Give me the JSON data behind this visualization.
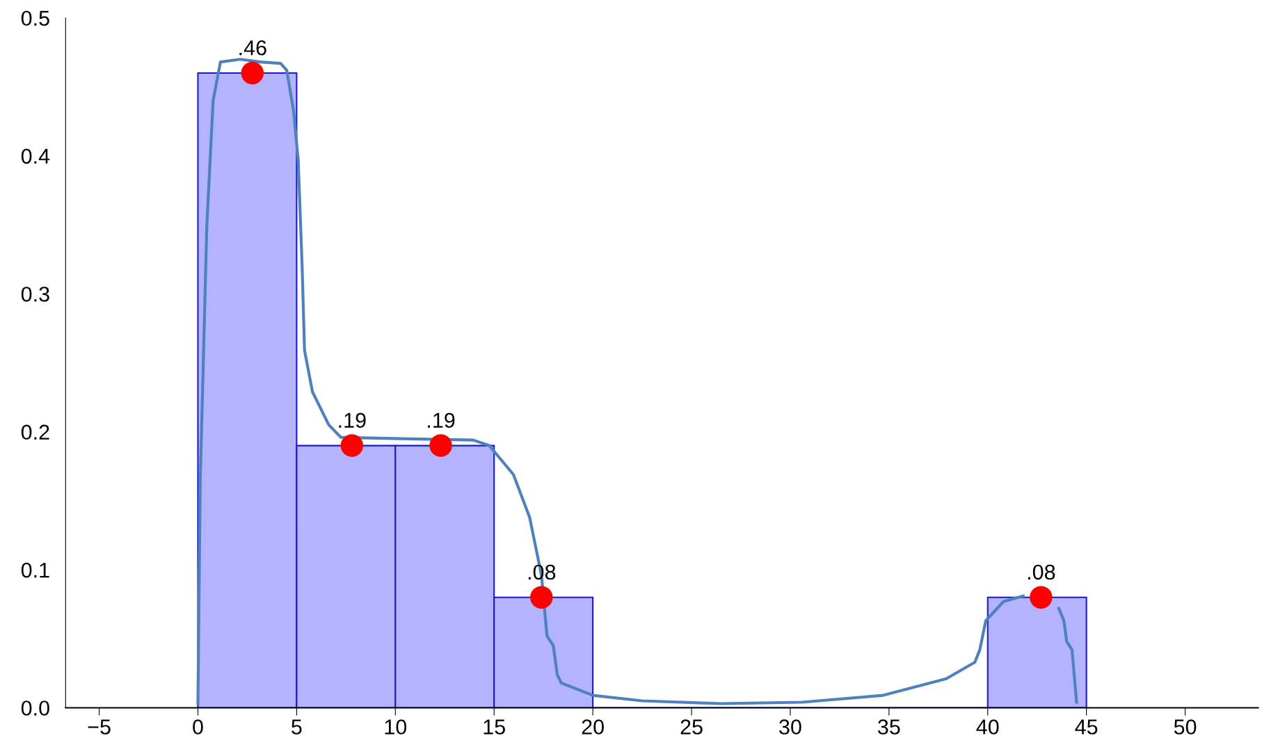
{
  "chart_data": {
    "type": "histogram",
    "xlim": [
      -6.7,
      53.7
    ],
    "xticks": [
      {
        "value": -5,
        "label": "−5"
      },
      0,
      5,
      10,
      15,
      20,
      25,
      30,
      35,
      40,
      45,
      50
    ],
    "ylim": [
      0,
      0.5
    ],
    "yticks": [
      {
        "value": 0,
        "label": "0.0"
      },
      0.1,
      0.2,
      0.3,
      0.4,
      0.5
    ],
    "grid": false,
    "color": "#b3b3ff",
    "bins": [
      0,
      5,
      10,
      15,
      20,
      25,
      30,
      35,
      40,
      45
    ],
    "values": [
      0.46,
      0.19,
      0.19,
      0.08,
      0,
      0,
      0,
      0,
      0.08
    ],
    "series": [
      {
        "type": "line",
        "color": "#4f81bd",
        "x": [
          0,
          0.12,
          0.45,
          0.77,
          1.14,
          2.15,
          3.17,
          4.19,
          4.5,
          4.84,
          5.08,
          5.28,
          5.4,
          5.8,
          6.63,
          7.24,
          10.28,
          13.94,
          14.76,
          15.98,
          16.8,
          17.4,
          17.68,
          18.0,
          18.2,
          18.4,
          20.0,
          22.5,
          26.5,
          30.6,
          34.7,
          37.9,
          39.35,
          39.6,
          39.9,
          40.8,
          41.8,
          42.8,
          43.6,
          43.86,
          44.0,
          44.27,
          44.5
        ],
        "values": [
          0.003,
          0.166,
          0.349,
          0.44,
          0.468,
          0.47,
          0.468,
          0.467,
          0.462,
          0.433,
          0.397,
          0.319,
          0.259,
          0.229,
          0.205,
          0.196,
          0.195,
          0.194,
          0.19,
          0.169,
          0.138,
          0.096,
          0.052,
          0.045,
          0.024,
          0.018,
          0.009,
          0.005,
          0.003,
          0.004,
          0.009,
          0.021,
          0.033,
          0.042,
          0.063,
          0.077,
          0.081,
          null,
          0.072,
          0.063,
          0.048,
          0.042,
          0.004
        ]
      },
      {
        "type": "scatter",
        "color": "#ff0000",
        "marker": "circle",
        "x": [
          2.76,
          7.8,
          12.3,
          17.4,
          42.7
        ],
        "values": [
          0.46,
          0.19,
          0.19,
          0.08,
          0.08
        ],
        "value_labels": [
          ".46",
          ".19",
          ".19",
          ".08",
          ".08"
        ]
      }
    ]
  }
}
